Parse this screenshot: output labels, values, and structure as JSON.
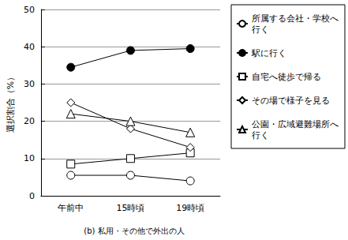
{
  "chart_data": {
    "type": "line",
    "title": "(b) 私用・その他で外出の人",
    "y_label": "選択割合（%）",
    "categories": [
      "午前中",
      "15時頃",
      "19時頃"
    ],
    "series": [
      {
        "name": "所属する会社・学校へ行く",
        "color": "#000000",
        "marker": "open_circle",
        "values": [
          5.5,
          5.5,
          4
        ]
      },
      {
        "name": "駅に行く",
        "color": "#000000",
        "marker": "filled_circle",
        "values": [
          34.5,
          39,
          39.5
        ]
      },
      {
        "name": "自宅へ徒歩で帰る",
        "color": "#000000",
        "marker": "open_square",
        "values": [
          8.5,
          10,
          11.5
        ]
      },
      {
        "name": "その場で様子を見る",
        "color": "#000000",
        "marker": "open_diamond",
        "values": [
          25,
          18,
          13
        ]
      },
      {
        "name": "公園・広域避難場所へ行く",
        "color": "#000000",
        "marker": "open_triangle",
        "values": [
          22,
          20,
          17
        ]
      }
    ],
    "ylim": [
      0,
      50
    ],
    "yticks": [
      0,
      10,
      20,
      30,
      40,
      50
    ],
    "grid": true,
    "legend": "right"
  }
}
